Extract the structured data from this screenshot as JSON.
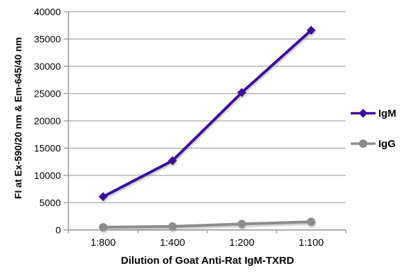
{
  "chart_data": {
    "type": "line",
    "title": "",
    "categories": [
      "1:800",
      "1:400",
      "1:200",
      "1:100"
    ],
    "series": [
      {
        "name": "IgM",
        "values": [
          6100,
          12700,
          25200,
          36600
        ],
        "color": "#3D0E9C",
        "marker": "diamond"
      },
      {
        "name": "IgG",
        "values": [
          500,
          650,
          1100,
          1500
        ],
        "color": "#8C8C8C",
        "marker": "circle"
      }
    ],
    "xlabel": "Dilution of Goat Anti-Rat IgM-TXRD",
    "ylabel": "FI at Ex-590/20 nm & Em-645/40 nm",
    "ylim": [
      0,
      40000
    ],
    "ytick_step": 5000,
    "ytick_labels": [
      "0",
      "5000",
      "10000",
      "15000",
      "20000",
      "25000",
      "30000",
      "35000",
      "40000"
    ],
    "grid": true,
    "legend_position": "right",
    "colors": {
      "gridline": "#A6A6A6",
      "axis": "#8F8F8F",
      "text": "#000000",
      "background": "#FFFFFF"
    }
  }
}
